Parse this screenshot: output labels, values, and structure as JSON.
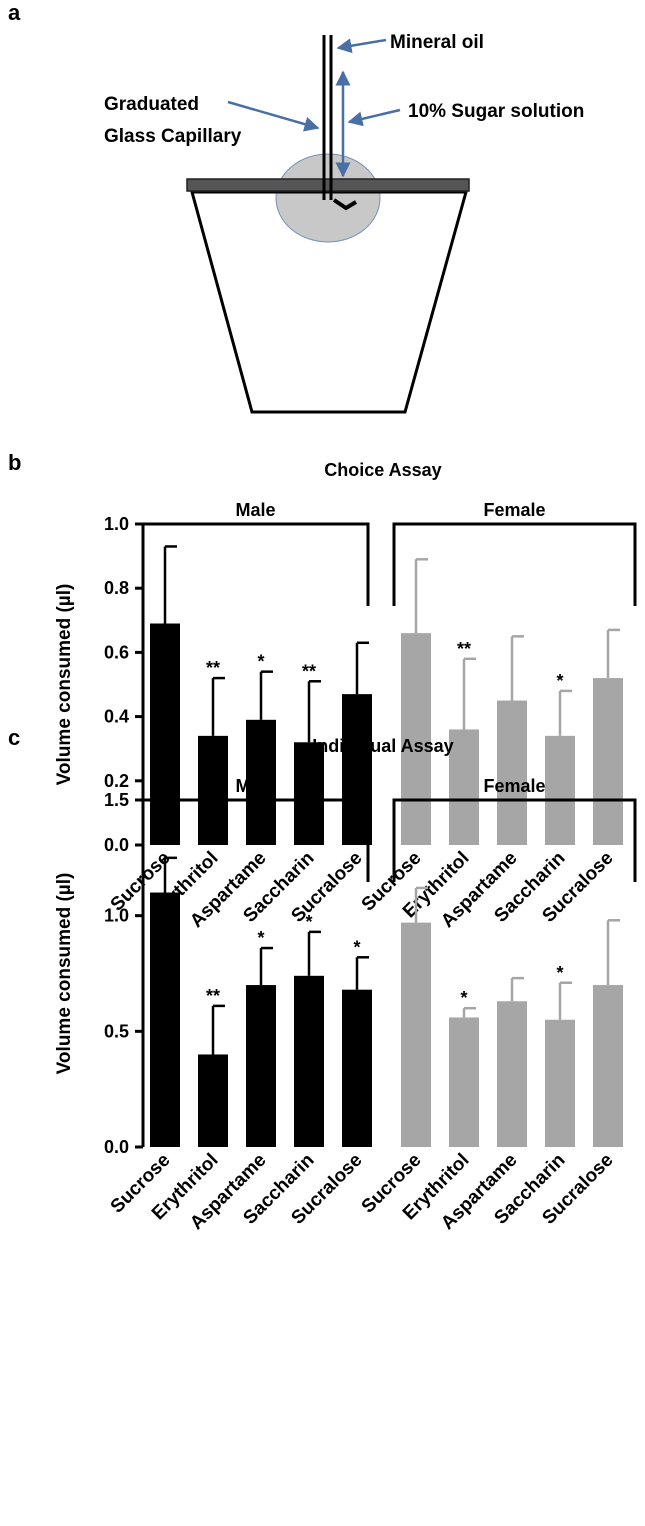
{
  "diagram": {
    "panel_label": "a",
    "labels": [
      "Mineral oil",
      "10% Sugar solution",
      "Graduated",
      "Glass Capillary"
    ]
  },
  "chart_data": [
    {
      "type": "bar",
      "panel_label": "b",
      "title": "Choice Assay",
      "ylabel": "Volume consumed (µl)",
      "ylim": [
        0,
        1.0
      ],
      "yticks": [
        {
          "value": 0,
          "label": "0.0"
        },
        0.2,
        0.4,
        0.6,
        0.8,
        {
          "value": 1.0,
          "label": "1.0"
        }
      ],
      "series": [
        {
          "name": "Male",
          "color": "#000000",
          "categories": [
            "Sucrose",
            "Erythritol",
            "Aspartame",
            "Saccharin",
            "Sucralose"
          ],
          "values": [
            0.69,
            0.34,
            0.39,
            0.32,
            0.47
          ],
          "errors": [
            0.24,
            0.18,
            0.15,
            0.19,
            0.16
          ],
          "annotations": [
            null,
            "**",
            "*",
            "**",
            null
          ]
        },
        {
          "name": "Female",
          "color": "#a6a6a6",
          "categories": [
            "Sucrose",
            "Erythritol",
            "Aspartame",
            "Saccharin",
            "Sucralose"
          ],
          "values": [
            0.66,
            0.36,
            0.45,
            0.34,
            0.52
          ],
          "errors": [
            0.23,
            0.22,
            0.2,
            0.14,
            0.15
          ],
          "annotations": [
            null,
            "**",
            null,
            "*",
            null
          ]
        }
      ]
    },
    {
      "type": "bar",
      "panel_label": "c",
      "title": "Individual Assay",
      "ylabel": "Volume consumed (µl)",
      "ylim": [
        0,
        1.5
      ],
      "yticks": [
        {
          "value": 0,
          "label": "0.0"
        },
        0.5,
        {
          "value": 1.0,
          "label": "1.0"
        },
        1.5
      ],
      "series": [
        {
          "name": "Male",
          "color": "#000000",
          "categories": [
            "Sucrose",
            "Erythritol",
            "Aspartame",
            "Saccharin",
            "Sucralose"
          ],
          "values": [
            1.1,
            0.4,
            0.7,
            0.74,
            0.68
          ],
          "errors": [
            0.15,
            0.21,
            0.16,
            0.19,
            0.14
          ],
          "annotations": [
            null,
            "**",
            "*",
            "*",
            "*"
          ]
        },
        {
          "name": "Female",
          "color": "#a6a6a6",
          "categories": [
            "Sucrose",
            "Erythritol",
            "Aspartame",
            "Saccharin",
            "Sucralose"
          ],
          "values": [
            0.97,
            0.56,
            0.63,
            0.55,
            0.7
          ],
          "errors": [
            0.15,
            0.04,
            0.1,
            0.16,
            0.28
          ],
          "annotations": [
            null,
            "*",
            null,
            "*",
            null
          ]
        }
      ]
    }
  ]
}
